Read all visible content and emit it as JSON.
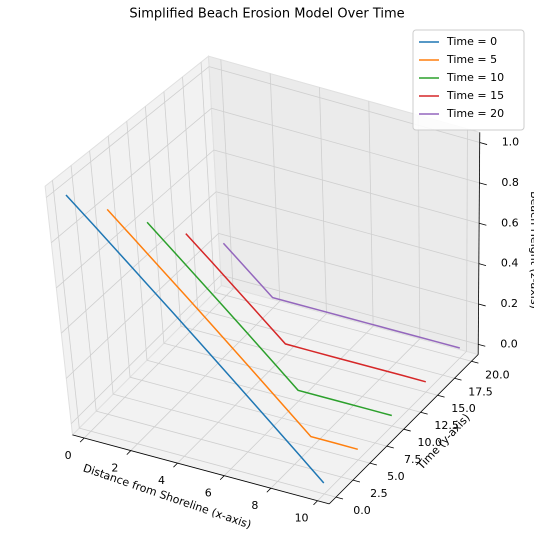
{
  "chart_data": {
    "type": "line3d",
    "title": "Simplified Beach Erosion Model Over Time",
    "xlabel": "Distance from Shoreline (x-axis)",
    "ylabel": "Time (y-axis)",
    "zlabel": "Beach Height (z-axis)",
    "x": [
      0,
      1,
      2,
      3,
      4,
      5,
      6,
      7,
      8,
      9,
      10
    ],
    "series": [
      {
        "name": "Time = 0",
        "y": 0,
        "color": "#1f77b4",
        "values": [
          1,
          0.9,
          0.8,
          0.7,
          0.6,
          0.5,
          0.4,
          0.3,
          0.2,
          0.1,
          0
        ]
      },
      {
        "name": "Time = 5",
        "y": 5,
        "color": "#ff7f0e",
        "values": [
          0.8,
          0.7,
          0.6,
          0.5,
          0.4,
          0.3,
          0.2,
          0.1,
          0,
          0,
          0
        ]
      },
      {
        "name": "Time = 10",
        "y": 10,
        "color": "#2ca02c",
        "values": [
          0.6,
          0.5,
          0.4,
          0.3,
          0.2,
          0.1,
          0,
          0,
          0,
          0,
          0
        ]
      },
      {
        "name": "Time = 15",
        "y": 15,
        "color": "#d62728",
        "values": [
          0.4,
          0.3,
          0.2,
          0.1,
          0,
          0,
          0,
          0,
          0,
          0,
          0
        ]
      },
      {
        "name": "Time = 20",
        "y": 20,
        "color": "#9467bd",
        "values": [
          0.2,
          0.1,
          0,
          0,
          0,
          0,
          0,
          0,
          0,
          0,
          0
        ]
      }
    ],
    "xlim": [
      0,
      10
    ],
    "ylim": [
      0,
      20
    ],
    "zlim": [
      0,
      1
    ],
    "xticks": [
      0,
      2,
      4,
      6,
      8,
      10
    ],
    "yticks": [
      {
        "value": 0,
        "label": "0.0"
      },
      {
        "value": 2.5,
        "label": "2.5"
      },
      {
        "value": 5,
        "label": "5.0"
      },
      {
        "value": 7.5,
        "label": "7.5"
      },
      {
        "value": 10,
        "label": "10.0"
      },
      {
        "value": 12.5,
        "label": "12.5"
      },
      {
        "value": 15,
        "label": "15.0"
      },
      {
        "value": 17.5,
        "label": "17.5"
      },
      {
        "value": 20,
        "label": "20.0"
      }
    ],
    "zticks": [
      {
        "value": 0,
        "label": "0.0"
      },
      {
        "value": 0.2,
        "label": "0.2"
      },
      {
        "value": 0.4,
        "label": "0.4"
      },
      {
        "value": 0.6,
        "label": "0.6"
      },
      {
        "value": 0.8,
        "label": "0.8"
      },
      {
        "value": 1,
        "label": "1.0"
      }
    ],
    "grid": true,
    "legend": "upper right"
  }
}
